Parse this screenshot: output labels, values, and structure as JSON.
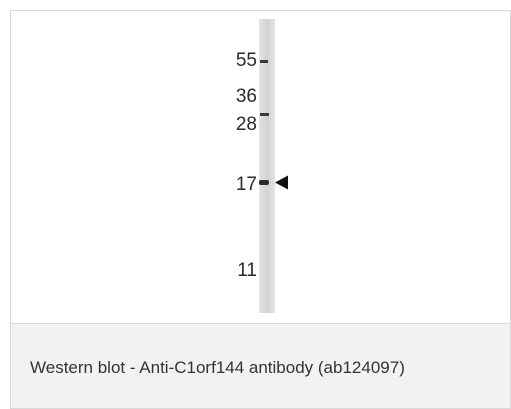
{
  "figure": {
    "markers": [
      {
        "label": "55"
      },
      {
        "label": "36"
      },
      {
        "label": "28"
      },
      {
        "label": "17"
      },
      {
        "label": "11"
      }
    ],
    "lane_color": "#d8d8d8",
    "band_color": "#2b2b2b"
  },
  "caption": {
    "text": "Western blot - Anti-C1orf144 antibody (ab124097)"
  }
}
